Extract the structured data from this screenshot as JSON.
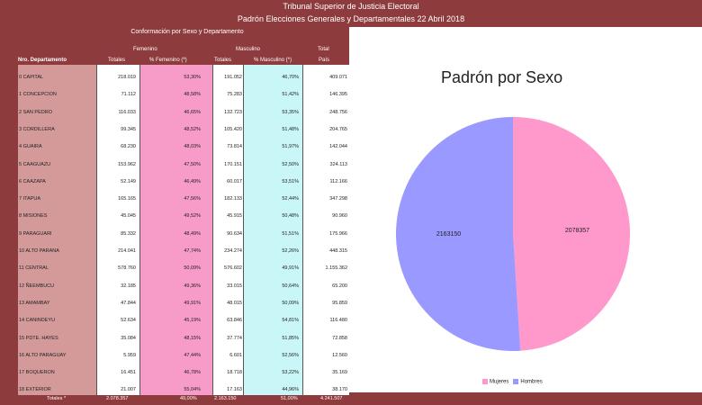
{
  "header": {
    "line1": "Tribunal Superior de Justicia Electoral",
    "line2": "Padrón Elecciones Generales y Departamentales 22 Abril 2018"
  },
  "table": {
    "section_title": "Conformación por Sexo y Departamento",
    "group_fem": "Femenino",
    "group_mas": "Masculino",
    "group_tot": "Total",
    "col_nro": "Nro. Departamento",
    "col_tf": "Totales",
    "col_pf": "% Femenino (*)",
    "col_tm": "Totales",
    "col_pm": "% Masculino (*)",
    "col_pais": "País",
    "rows": [
      {
        "dep": "0  CAPITAL",
        "tf": "218.019",
        "pf": "53,30%",
        "tm": "191.052",
        "pm": "46,70%",
        "tot": "409.071"
      },
      {
        "dep": "1  CONCEPCION",
        "tf": "71.112",
        "pf": "48,58%",
        "tm": "75.283",
        "pm": "51,42%",
        "tot": "146.395"
      },
      {
        "dep": "2  SAN PEDRO",
        "tf": "116.033",
        "pf": "46,65%",
        "tm": "132.723",
        "pm": "53,35%",
        "tot": "248.756"
      },
      {
        "dep": "3  CORDILLERA",
        "tf": "99.345",
        "pf": "48,52%",
        "tm": "105.420",
        "pm": "51,48%",
        "tot": "204.765"
      },
      {
        "dep": "4  GUAIRA",
        "tf": "68.230",
        "pf": "48,03%",
        "tm": "73.814",
        "pm": "51,97%",
        "tot": "142.044"
      },
      {
        "dep": "5  CAAGUAZU",
        "tf": "153.962",
        "pf": "47,50%",
        "tm": "170.151",
        "pm": "52,50%",
        "tot": "324.113"
      },
      {
        "dep": "6  CAAZAPA",
        "tf": "52.149",
        "pf": "46,49%",
        "tm": "60.017",
        "pm": "53,51%",
        "tot": "112.166"
      },
      {
        "dep": "7  ITAPUA",
        "tf": "165.165",
        "pf": "47,56%",
        "tm": "182.133",
        "pm": "52,44%",
        "tot": "347.298"
      },
      {
        "dep": "8  MISIONES",
        "tf": "45.045",
        "pf": "49,52%",
        "tm": "45.915",
        "pm": "50,48%",
        "tot": "90.960"
      },
      {
        "dep": "9  PARAGUARI",
        "tf": "85.332",
        "pf": "48,49%",
        "tm": "90.634",
        "pm": "51,51%",
        "tot": "175.966"
      },
      {
        "dep": "10  ALTO PARANA",
        "tf": "214.041",
        "pf": "47,74%",
        "tm": "234.274",
        "pm": "52,26%",
        "tot": "448.315"
      },
      {
        "dep": "11  CENTRAL",
        "tf": "578.760",
        "pf": "50,09%",
        "tm": "576.602",
        "pm": "49,91%",
        "tot": "1.155.362"
      },
      {
        "dep": "12  ÑEEMBUCU",
        "tf": "32.185",
        "pf": "49,36%",
        "tm": "33.015",
        "pm": "50,64%",
        "tot": "65.200"
      },
      {
        "dep": "13  AMAMBAY",
        "tf": "47.844",
        "pf": "49,91%",
        "tm": "48.015",
        "pm": "50,09%",
        "tot": "95.859"
      },
      {
        "dep": "14  CANINDEYU",
        "tf": "52.634",
        "pf": "45,19%",
        "tm": "63.846",
        "pm": "54,81%",
        "tot": "116.480"
      },
      {
        "dep": "15  PDTE. HAYES",
        "tf": "35.084",
        "pf": "48,15%",
        "tm": "37.774",
        "pm": "51,85%",
        "tot": "72.858"
      },
      {
        "dep": "16  ALTO PARAGUAY",
        "tf": "5.959",
        "pf": "47,44%",
        "tm": "6.601",
        "pm": "52,56%",
        "tot": "12.560"
      },
      {
        "dep": "17  BOQUERON",
        "tf": "16.451",
        "pf": "46,78%",
        "tm": "18.718",
        "pm": "53,22%",
        "tot": "35.169"
      },
      {
        "dep": "18  EXTERIOR",
        "tf": "21.007",
        "pf": "55,04%",
        "tm": "17.163",
        "pm": "44,96%",
        "tot": "38.170"
      }
    ],
    "totals": {
      "label": "Totales *",
      "tf": "2.078.357",
      "pf": "49,00%",
      "tm": "2.163.150",
      "pm": "51,00%",
      "tot": "4.241.507"
    }
  },
  "chart_data": {
    "type": "pie",
    "title": "Padrón por Sexo",
    "slices": [
      {
        "name": "Mujeres",
        "value": 2078357,
        "color": "#ff99cc"
      },
      {
        "name": "Hombres",
        "value": 2163150,
        "color": "#9999ff"
      }
    ],
    "legend_position": "bottom"
  }
}
